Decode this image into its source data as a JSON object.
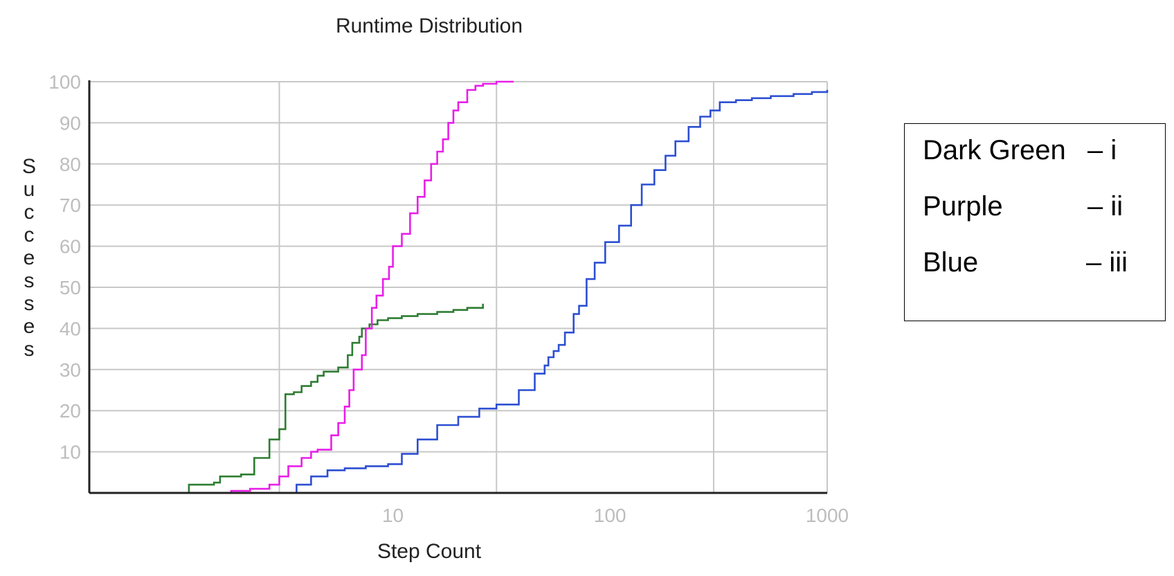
{
  "chart_data": {
    "type": "line",
    "title": "Runtime Distribution",
    "xlabel": "Step Count",
    "ylabel": "Successes",
    "x_scale": "log",
    "xlim": [
      0.4,
      1000
    ],
    "ylim": [
      0,
      100
    ],
    "x_ticks": [
      10,
      100,
      1000
    ],
    "x_tick_labels": [
      "10",
      "100",
      "1000"
    ],
    "x_gridlines": [
      3,
      30,
      300
    ],
    "y_ticks": [
      10,
      20,
      30,
      40,
      50,
      60,
      70,
      80,
      90,
      100
    ],
    "y_tick_labels": [
      "10",
      "20",
      "30",
      "40",
      "50",
      "60",
      "70",
      "80",
      "90",
      "100"
    ],
    "grid": true,
    "colors": {
      "axis": "#222222",
      "grid": "#c8c8c8",
      "tick_label": "#bdbdbd",
      "text": "#222222"
    },
    "series": [
      {
        "key": "i",
        "color": "#2e7d32",
        "x": [
          1.15,
          1.15,
          1.5,
          1.6,
          2.0,
          2.3,
          2.3,
          2.7,
          2.7,
          3.0,
          3.0,
          3.2,
          3.5,
          3.8,
          4.2,
          4.5,
          4.8,
          5.2,
          5.6,
          6.2,
          6.5,
          7.0,
          7.2,
          7.8,
          8.5,
          9.5,
          11,
          13,
          16,
          19,
          22,
          26
        ],
        "y": [
          0,
          2,
          2.5,
          4,
          4.5,
          7.5,
          8.5,
          8.5,
          13,
          13.5,
          15.5,
          24,
          24.5,
          26,
          27,
          28.5,
          29.5,
          29.5,
          30.5,
          33.5,
          36.5,
          38,
          40,
          41,
          42,
          42.5,
          43,
          43.5,
          44,
          44.5,
          45,
          46
        ]
      },
      {
        "key": "ii",
        "color": "#e91ee9",
        "x": [
          1.3,
          1.8,
          2.2,
          2.7,
          3.0,
          3.3,
          3.8,
          4.2,
          4.5,
          5.2,
          5.6,
          6.0,
          6.3,
          6.6,
          7.2,
          7.5,
          8.0,
          8.4,
          9.0,
          9.6,
          10,
          11,
          12,
          13,
          14,
          15,
          16,
          17,
          18,
          19,
          20,
          22,
          24,
          26,
          30,
          36
        ],
        "y": [
          0,
          0.5,
          1,
          2,
          4,
          6.5,
          8.5,
          10,
          10.5,
          14,
          17,
          21,
          25,
          30,
          33.5,
          40,
          45,
          48,
          52,
          55,
          60,
          63,
          68,
          72,
          76,
          80,
          83,
          86,
          90,
          93,
          95,
          98,
          99,
          99.5,
          100,
          100
        ]
      },
      {
        "key": "iii",
        "color": "#2c4fd2",
        "x": [
          3.2,
          3.6,
          4.2,
          5.0,
          6.0,
          7.5,
          9.5,
          11,
          13,
          16,
          20,
          25,
          30,
          38,
          45,
          50,
          52,
          55,
          58,
          62,
          68,
          72,
          78,
          85,
          95,
          110,
          125,
          140,
          160,
          180,
          200,
          230,
          260,
          290,
          320,
          380,
          450,
          550,
          700,
          850,
          1000
        ],
        "y": [
          0,
          2,
          4,
          5.5,
          6,
          6.5,
          7,
          9.5,
          13,
          16.5,
          18.5,
          20.5,
          21.5,
          25,
          29,
          31,
          33,
          34.5,
          36,
          39,
          43.5,
          45.5,
          52,
          56,
          61,
          65,
          70,
          75,
          78.5,
          82,
          85.5,
          89,
          91.5,
          93,
          95,
          95.5,
          96,
          96.5,
          97,
          97.5,
          98
        ]
      }
    ]
  },
  "legend": {
    "entries": [
      {
        "name": "Dark Green",
        "code": "– i"
      },
      {
        "name": "Purple",
        "code": "– ii"
      },
      {
        "name": "Blue",
        "code": "– iii"
      }
    ]
  }
}
